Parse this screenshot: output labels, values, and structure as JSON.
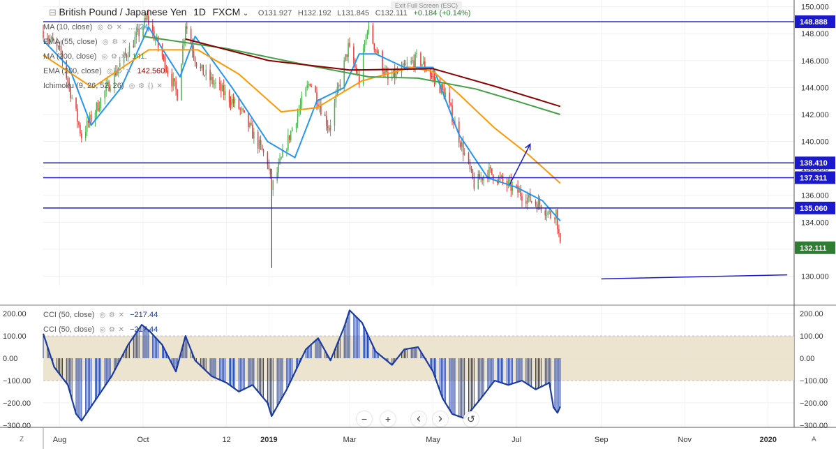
{
  "header": {
    "title": "British Pound / Japanese Yen",
    "interval": "1D",
    "source": "FXCM",
    "open": "O131.927",
    "high": "H132.192",
    "low": "L131.845",
    "close": "C132.111",
    "change": "+0.184 (+0.14%)",
    "exit_full_screen": "Exit Full Screen (ESC)"
  },
  "legend_main": [
    {
      "label": "MA (10, close)",
      "value": "…124"
    },
    {
      "label": "EMA (55, close)",
      "value": ""
    },
    {
      "label": "MA (200, close)",
      "value": "141."
    },
    {
      "label": "EMA (200, close)",
      "value": "142.560"
    },
    {
      "label": "Ichimoku (9, 26, 52, 26)",
      "value": ""
    }
  ],
  "legend_cci": [
    {
      "label": "CCI (50, close)",
      "value": "−217.44"
    },
    {
      "label": "CCI (50, close)",
      "value": "−217.44"
    }
  ],
  "colors": {
    "up": "#4caf50",
    "down": "#e53935",
    "ma10": "#2196f3",
    "ema55": "#ff9800",
    "ma200": "#43a047",
    "ema200": "#8b0000",
    "hline": "#1a1acc",
    "cci": "#1a3a9e",
    "band": "#eadfc8",
    "price_tag": "#2e7d32"
  },
  "chart_data": [
    {
      "type": "candlestick",
      "title": "British Pound / Japanese Yen · 1D · FXCM",
      "ylim": [
        129.3,
        150.5
      ],
      "y_ticks": [
        130,
        132,
        134,
        136,
        138,
        140,
        142,
        144,
        146,
        148,
        150
      ],
      "x_ticks": [
        "Aug",
        "Oct",
        "12",
        "2019",
        "Mar",
        "May",
        "Jul",
        "Sep",
        "Nov",
        "2020"
      ],
      "x_ticks_bold": [
        "2019",
        "2020"
      ],
      "horizontal_levels": [
        148.888,
        138.41,
        137.311,
        135.06
      ],
      "last_price": 132.111,
      "anchors": [
        {
          "d": "2018-07-20",
          "p": 148.2
        },
        {
          "d": "2018-08-02",
          "p": 146.5
        },
        {
          "d": "2018-08-17",
          "p": 140.4
        },
        {
          "d": "2018-09-10",
          "p": 145.0
        },
        {
          "d": "2018-10-04",
          "p": 149.1
        },
        {
          "d": "2018-10-26",
          "p": 143.5
        },
        {
          "d": "2018-11-01",
          "p": 148.8
        },
        {
          "d": "2018-11-10",
          "p": 145.5
        },
        {
          "d": "2018-12-10",
          "p": 142.5
        },
        {
          "d": "2018-12-31",
          "p": 138.5
        },
        {
          "d": "2019-01-03",
          "p": 136.5
        },
        {
          "d": "2019-01-18",
          "p": 141.0
        },
        {
          "d": "2019-01-31",
          "p": 144.5
        },
        {
          "d": "2019-02-14",
          "p": 141.0
        },
        {
          "d": "2019-02-28",
          "p": 147.0
        },
        {
          "d": "2019-03-08",
          "p": 144.5
        },
        {
          "d": "2019-03-14",
          "p": 148.5
        },
        {
          "d": "2019-03-29",
          "p": 144.5
        },
        {
          "d": "2019-04-20",
          "p": 146.2
        },
        {
          "d": "2019-05-10",
          "p": 143.5
        },
        {
          "d": "2019-05-31",
          "p": 136.8
        },
        {
          "d": "2019-06-10",
          "p": 137.8
        },
        {
          "d": "2019-06-24",
          "p": 136.8
        },
        {
          "d": "2019-07-09",
          "p": 135.8
        },
        {
          "d": "2019-07-20",
          "p": 135.2
        },
        {
          "d": "2019-07-26",
          "p": 134.5
        },
        {
          "d": "2019-07-30",
          "p": 134.8
        },
        {
          "d": "2019-08-02",
          "p": 132.1
        }
      ],
      "flash_crash": {
        "d": "2019-01-03",
        "low": 130.6
      },
      "moving_averages": [
        {
          "name": "MA (10, close)",
          "color": "#2196f3",
          "points": [
            [
              "2018-07-20",
              147.5
            ],
            [
              "2018-08-08",
              145.5
            ],
            [
              "2018-08-24",
              141.2
            ],
            [
              "2018-09-15",
              144.0
            ],
            [
              "2018-10-05",
              148.5
            ],
            [
              "2018-10-28",
              144.8
            ],
            [
              "2018-11-08",
              147.8
            ],
            [
              "2018-12-05",
              144.0
            ],
            [
              "2018-12-31",
              140.0
            ],
            [
              "2019-01-20",
              138.8
            ],
            [
              "2019-02-05",
              143.0
            ],
            [
              "2019-02-25",
              144.0
            ],
            [
              "2019-03-08",
              146.5
            ],
            [
              "2019-03-20",
              146.5
            ],
            [
              "2019-04-10",
              145.5
            ],
            [
              "2019-05-01",
              145.5
            ],
            [
              "2019-05-20",
              140.5
            ],
            [
              "2019-06-10",
              137.3
            ],
            [
              "2019-07-01",
              136.6
            ],
            [
              "2019-07-20",
              135.6
            ],
            [
              "2019-08-02",
              134.1
            ]
          ]
        },
        {
          "name": "EMA (55, close)",
          "color": "#ff9800",
          "points": [
            [
              "2018-07-20",
              146.4
            ],
            [
              "2018-08-25",
              144.0
            ],
            [
              "2018-10-05",
              146.8
            ],
            [
              "2018-11-10",
              146.8
            ],
            [
              "2018-12-10",
              145.0
            ],
            [
              "2019-01-10",
              142.2
            ],
            [
              "2019-02-05",
              142.5
            ],
            [
              "2019-03-10",
              144.5
            ],
            [
              "2019-04-15",
              145.5
            ],
            [
              "2019-05-01",
              145.2
            ],
            [
              "2019-05-20",
              143.5
            ],
            [
              "2019-06-15",
              141.0
            ],
            [
              "2019-07-10",
              139.0
            ],
            [
              "2019-08-02",
              136.9
            ]
          ]
        },
        {
          "name": "MA (200, close)",
          "color": "#43a047",
          "points": [
            [
              "2018-10-01",
              147.8
            ],
            [
              "2018-12-01",
              146.9
            ],
            [
              "2019-02-01",
              145.6
            ],
            [
              "2019-03-15",
              144.8
            ],
            [
              "2019-04-20",
              144.7
            ],
            [
              "2019-06-01",
              143.9
            ],
            [
              "2019-07-01",
              143.0
            ],
            [
              "2019-08-02",
              142.0
            ]
          ]
        },
        {
          "name": "EMA (200, close)",
          "color": "#8b0000",
          "points": [
            [
              "2018-11-01",
              147.6
            ],
            [
              "2019-01-01",
              146.0
            ],
            [
              "2019-03-01",
              145.3
            ],
            [
              "2019-05-01",
              145.4
            ],
            [
              "2019-06-15",
              144.1
            ],
            [
              "2019-08-02",
              142.6
            ]
          ]
        }
      ],
      "arrow": {
        "from": [
          "2019-06-26",
          136.8
        ],
        "to": [
          "2019-07-11",
          139.8
        ]
      },
      "trend_line": {
        "from": [
          "2019-09-01",
          129.8
        ],
        "to": [
          "2020-01-15",
          130.1
        ]
      }
    },
    {
      "type": "line",
      "title": "CCI (50, close)",
      "ylim": [
        -310,
        235
      ],
      "y_ticks": [
        200,
        100,
        0,
        -100,
        -200,
        -300
      ],
      "band": [
        -100,
        100
      ],
      "last_value": -217.44,
      "points": [
        [
          "2018-07-20",
          110
        ],
        [
          "2018-07-28",
          -40
        ],
        [
          "2018-08-07",
          -120
        ],
        [
          "2018-08-13",
          -250
        ],
        [
          "2018-08-17",
          -280
        ],
        [
          "2018-08-28",
          -180
        ],
        [
          "2018-09-08",
          -80
        ],
        [
          "2018-09-20",
          60
        ],
        [
          "2018-09-30",
          150
        ],
        [
          "2018-10-06",
          120
        ],
        [
          "2018-10-15",
          60
        ],
        [
          "2018-10-25",
          -60
        ],
        [
          "2018-11-01",
          100
        ],
        [
          "2018-11-08",
          -10
        ],
        [
          "2018-11-20",
          -80
        ],
        [
          "2018-12-01",
          -110
        ],
        [
          "2018-12-10",
          -150
        ],
        [
          "2018-12-20",
          -120
        ],
        [
          "2018-12-31",
          -200
        ],
        [
          "2019-01-03",
          -260
        ],
        [
          "2019-01-14",
          -140
        ],
        [
          "2019-01-28",
          40
        ],
        [
          "2019-02-06",
          90
        ],
        [
          "2019-02-15",
          -10
        ],
        [
          "2019-02-25",
          140
        ],
        [
          "2019-03-01",
          215
        ],
        [
          "2019-03-10",
          160
        ],
        [
          "2019-03-20",
          30
        ],
        [
          "2019-04-01",
          -30
        ],
        [
          "2019-04-10",
          40
        ],
        [
          "2019-04-20",
          50
        ],
        [
          "2019-05-01",
          -60
        ],
        [
          "2019-05-08",
          -180
        ],
        [
          "2019-05-15",
          -250
        ],
        [
          "2019-05-24",
          -270
        ],
        [
          "2019-06-05",
          -180
        ],
        [
          "2019-06-15",
          -100
        ],
        [
          "2019-06-25",
          -120
        ],
        [
          "2019-07-05",
          -100
        ],
        [
          "2019-07-15",
          -140
        ],
        [
          "2019-07-25",
          -110
        ],
        [
          "2019-07-28",
          -220
        ],
        [
          "2019-07-31",
          -245
        ],
        [
          "2019-08-02",
          -217
        ]
      ]
    }
  ],
  "toolbar": {
    "zoom_out": "−",
    "zoom_in": "+",
    "scroll_left": "‹",
    "scroll_right": "›",
    "reset": "↺",
    "bottom_left": "Z",
    "bottom_right": "A"
  }
}
